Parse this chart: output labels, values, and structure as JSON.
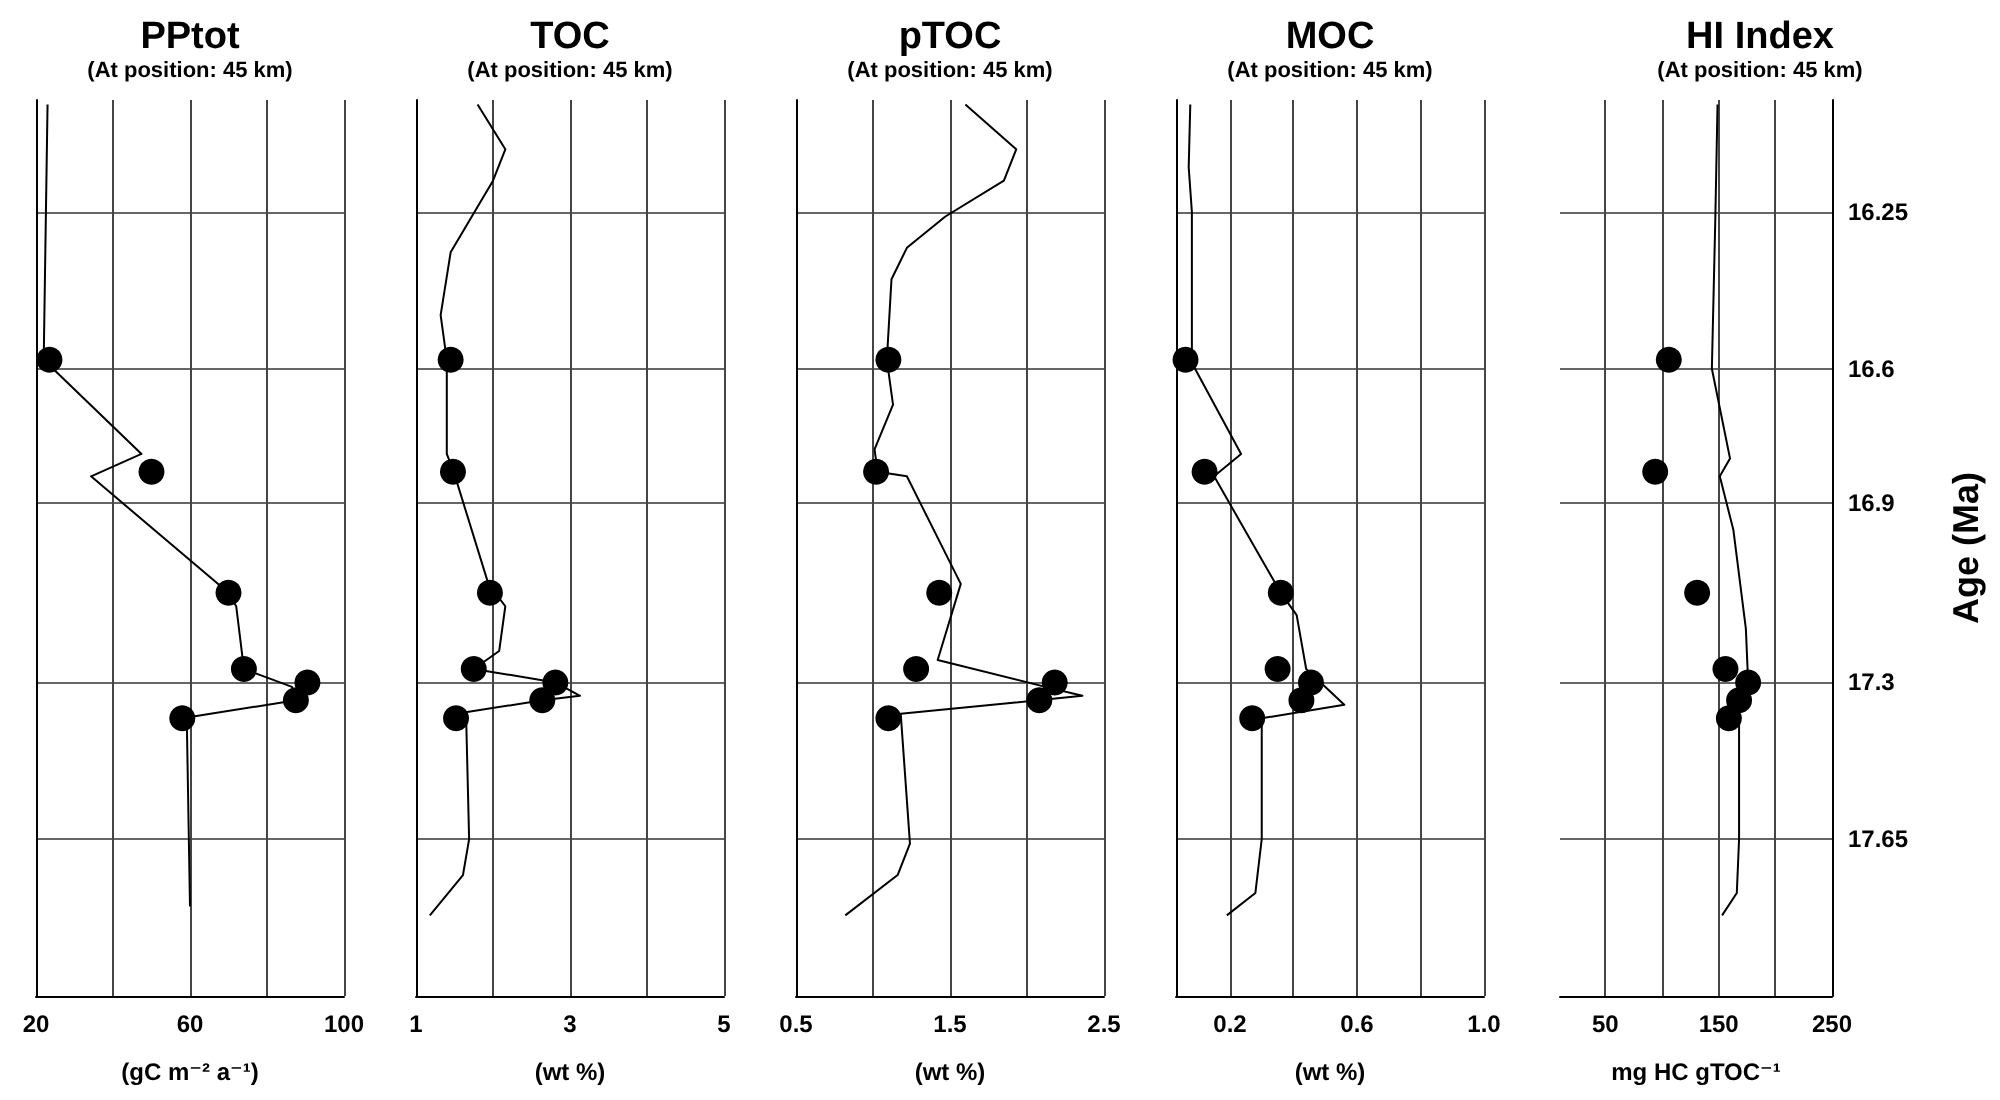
{
  "chart_data": [
    {
      "type": "line",
      "title": "PPtot",
      "subtitle": "(At position: 45 km)",
      "xlabel": "(gC m⁻² a⁻¹)",
      "xlim": [
        20,
        100
      ],
      "xticks": [
        20,
        {
          "value": 40,
          "label": null
        },
        60,
        {
          "value": 80,
          "label": null
        },
        100
      ],
      "ylim": [
        18.0,
        16.0
      ],
      "yticks": [
        16.25,
        16.6,
        16.9,
        17.3,
        17.65
      ],
      "grid": true,
      "tick_labels": "x",
      "series": [
        {
          "color": "#000000",
          "marker": "none",
          "x": [
            23,
            22,
            47.4,
            34.3,
            70,
            72,
            74,
            86.5,
            87.5,
            58,
            59.2,
            60
          ],
          "values": [
            16.01,
            16.58,
            16.79,
            16.84,
            17.1,
            17.13,
            17.27,
            17.31,
            17.34,
            17.38,
            17.4,
            17.8
          ]
        },
        {
          "type": "scatter",
          "color": "#000000",
          "marker": "circle",
          "x": [
            23.5,
            50,
            70,
            74,
            90.5,
            87.5,
            58
          ],
          "values": [
            16.58,
            16.83,
            17.1,
            17.27,
            17.3,
            17.34,
            17.38
          ]
        }
      ]
    },
    {
      "type": "line",
      "title": "TOC",
      "subtitle": "(At position: 45 km)",
      "xlabel": "(wt %)",
      "xlim": [
        1,
        5
      ],
      "xticks": [
        1,
        {
          "value": 2,
          "label": null
        },
        3,
        {
          "value": 4,
          "label": null
        },
        5
      ],
      "ylim": [
        18.0,
        16.0
      ],
      "yticks": [
        16.25,
        16.6,
        16.9,
        17.3,
        17.65
      ],
      "grid": true,
      "tick_labels": "x",
      "series": [
        {
          "color": "#000000",
          "marker": "none",
          "x": [
            1.8,
            2.16,
            2.0,
            1.45,
            1.32,
            1.4,
            1.4,
            1.49,
            1.94,
            2.16,
            2.08,
            1.75,
            2.81,
            3.13,
            2.64,
            1.52,
            1.65,
            1.69,
            1.61,
            1.18
          ],
          "values": [
            16.01,
            16.11,
            16.18,
            16.34,
            16.48,
            16.58,
            16.79,
            16.83,
            17.08,
            17.13,
            17.23,
            17.27,
            17.3,
            17.33,
            17.34,
            17.37,
            17.37,
            17.65,
            17.73,
            17.82
          ]
        },
        {
          "type": "scatter",
          "color": "#000000",
          "marker": "circle",
          "x": [
            1.45,
            1.48,
            1.96,
            1.75,
            2.81,
            2.64,
            1.52
          ],
          "values": [
            16.58,
            16.83,
            17.1,
            17.27,
            17.3,
            17.34,
            17.38
          ]
        }
      ]
    },
    {
      "type": "line",
      "title": "pTOC",
      "subtitle": "(At position: 45 km)",
      "xlabel": "(wt %)",
      "xlim": [
        0.5,
        2.5
      ],
      "xticks": [
        0.5,
        {
          "value": 1,
          "label": null
        },
        1.5,
        {
          "value": 2,
          "label": null
        },
        2.5
      ],
      "ylim": [
        18.0,
        16.0
      ],
      "yticks": [
        16.25,
        16.6,
        16.9,
        17.3,
        17.65
      ],
      "grid": true,
      "tick_labels": "x",
      "series": [
        {
          "color": "#000000",
          "marker": "none",
          "x": [
            1.6,
            1.93,
            1.85,
            1.47,
            1.22,
            1.12,
            1.09,
            1.13,
            1.01,
            1.03,
            1.22,
            1.57,
            1.42,
            2.12,
            2.36,
            1.18,
            1.24,
            1.16,
            0.82
          ],
          "values": [
            16.01,
            16.11,
            16.18,
            16.26,
            16.33,
            16.4,
            16.58,
            16.68,
            16.78,
            16.83,
            16.84,
            17.08,
            17.25,
            17.31,
            17.33,
            17.37,
            17.66,
            17.73,
            17.82
          ]
        },
        {
          "type": "scatter",
          "color": "#000000",
          "marker": "circle",
          "x": [
            1.1,
            1.02,
            1.43,
            1.28,
            2.18,
            2.08,
            1.1
          ],
          "values": [
            16.58,
            16.83,
            17.1,
            17.27,
            17.3,
            17.34,
            17.38
          ]
        }
      ]
    },
    {
      "type": "line",
      "title": "MOC",
      "subtitle": "(At position: 45 km)",
      "xlabel": "(wt %)",
      "xlim": [
        0.03,
        1.0
      ],
      "xticks": [
        0.2,
        {
          "value": 0.4,
          "label": null
        },
        0.6,
        {
          "value": 0.8,
          "label": null
        },
        {
          "value": 1.0,
          "label": "1.0"
        }
      ],
      "ylim": [
        18.0,
        16.0
      ],
      "yticks": [
        16.25,
        16.6,
        16.9,
        17.3,
        17.65
      ],
      "grid": true,
      "tick_labels": "x",
      "series": [
        {
          "color": "#000000",
          "marker": "none",
          "x": [
            0.075,
            0.07,
            0.08,
            0.08,
            0.09,
            0.235,
            0.15,
            0.36,
            0.41,
            0.44,
            0.56,
            0.3,
            0.3,
            0.28,
            0.19
          ],
          "values": [
            16.01,
            16.15,
            16.25,
            16.58,
            16.6,
            16.79,
            16.84,
            17.1,
            17.15,
            17.27,
            17.35,
            17.38,
            17.65,
            17.77,
            17.82
          ]
        },
        {
          "type": "scatter",
          "color": "#000000",
          "marker": "circle",
          "x": [
            0.06,
            0.12,
            0.36,
            0.35,
            0.455,
            0.425,
            0.27
          ],
          "values": [
            16.58,
            16.83,
            17.1,
            17.27,
            17.3,
            17.34,
            17.38
          ]
        }
      ]
    },
    {
      "type": "line",
      "title": "HI Index",
      "subtitle": "(At position: 45 km)",
      "xlabel": "mg HC gTOC⁻¹",
      "ylabel": "Age (Ma)",
      "xlim": [
        10,
        250
      ],
      "xticks": [
        50,
        {
          "value": 100,
          "label": null
        },
        150,
        {
          "value": 200,
          "label": null
        },
        250
      ],
      "ylim": [
        18.0,
        16.0
      ],
      "yticks": [
        16.25,
        16.6,
        16.9,
        17.3,
        17.65
      ],
      "grid": true,
      "series": [
        {
          "color": "#000000",
          "marker": "none",
          "x": [
            149,
            147,
            144,
            160,
            151,
            163,
            174,
            176,
            168,
            168,
            166,
            153
          ],
          "values": [
            16.01,
            16.27,
            16.6,
            16.8,
            16.84,
            16.96,
            17.18,
            17.3,
            17.35,
            17.65,
            17.77,
            17.82
          ]
        },
        {
          "type": "scatter",
          "color": "#000000",
          "marker": "circle",
          "x": [
            106,
            94,
            131,
            156,
            176,
            168,
            159
          ],
          "values": [
            16.58,
            16.83,
            17.1,
            17.27,
            17.3,
            17.34,
            17.38
          ]
        }
      ]
    }
  ]
}
